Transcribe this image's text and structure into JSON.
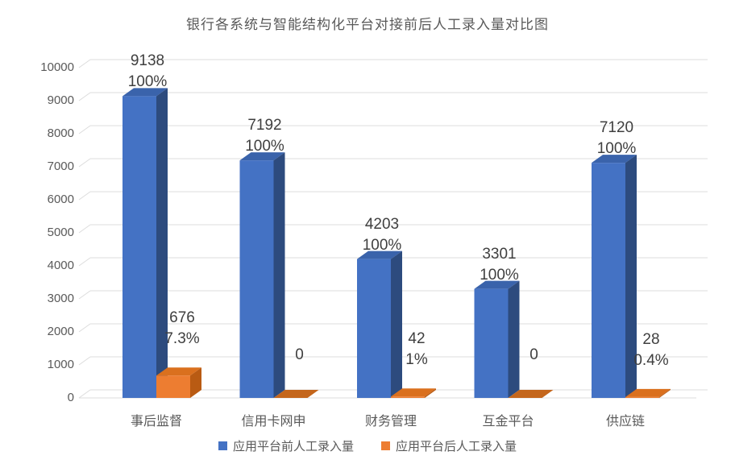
{
  "chart_data": {
    "type": "bar",
    "variant": "3d-column",
    "title": "银行各系统与智能结构化平台对接前后人工录入量对比图",
    "categories": [
      "事后监督",
      "信用卡网申",
      "财务管理",
      "互金平台",
      "供应链"
    ],
    "series": [
      {
        "name": "应用平台前人工录入量",
        "color": "#4472C4",
        "color_top": "#3A63AB",
        "color_side": "#2D4B7E",
        "values": [
          9138,
          7192,
          4203,
          3301,
          7120
        ],
        "labels": [
          [
            "9138",
            "100%"
          ],
          [
            "7192",
            "100%"
          ],
          [
            "4203",
            "100%"
          ],
          [
            "3301",
            "100%"
          ],
          [
            "7120",
            "100%"
          ]
        ]
      },
      {
        "name": "应用平台后人工录入量",
        "color": "#ED7D31",
        "color_top": "#DA701E",
        "color_side": "#B95B13",
        "color_flat": "#C4661C",
        "values": [
          676,
          0,
          42,
          0,
          28
        ],
        "labels": [
          [
            "676",
            "7.3%"
          ],
          [
            "0"
          ],
          [
            "42",
            "1%"
          ],
          [
            "0"
          ],
          [
            "28",
            "0.4%"
          ]
        ]
      }
    ],
    "y_axis": {
      "min": 0,
      "max": 10000,
      "step": 1000,
      "ticks": [
        "0",
        "1000",
        "2000",
        "3000",
        "4000",
        "5000",
        "6000",
        "7000",
        "8000",
        "9000",
        "10000"
      ]
    },
    "legend_position": "bottom",
    "grid": true
  },
  "colors": {
    "grid": "#DCDCDC",
    "axis_text": "#595959",
    "label_text": "#3F3F3F",
    "title_text": "#595959",
    "background": "#FFFFFF"
  }
}
